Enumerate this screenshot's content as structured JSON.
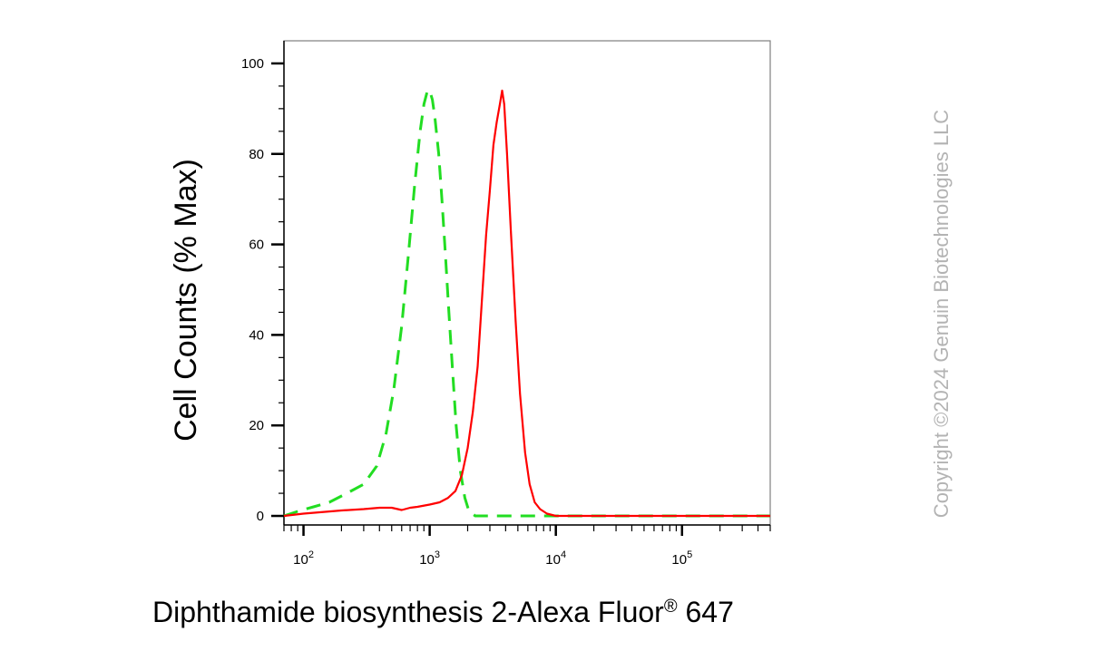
{
  "chart_data": {
    "type": "line",
    "title": "",
    "xlabel": "Diphthamide biosynthesis 2-Alexa Fluor",
    "xlabel_superscript": "®",
    "xlabel_suffix": " 647",
    "ylabel": "Cell Counts (% Max)",
    "xscale": "log",
    "xlim": [
      70,
      500000
    ],
    "ylim": [
      -2,
      105
    ],
    "y_ticks": [
      0,
      20,
      40,
      60,
      80,
      100
    ],
    "x_ticks": [
      {
        "value": 100,
        "base": "10",
        "exp": "2"
      },
      {
        "value": 1000,
        "base": "10",
        "exp": "3"
      },
      {
        "value": 10000,
        "base": "10",
        "exp": "4"
      },
      {
        "value": 100000,
        "base": "10",
        "exp": "5"
      }
    ],
    "grid": false,
    "legend": "none",
    "series": [
      {
        "color": "#22dd22",
        "style": "dashed",
        "x": [
          70,
          90,
          120,
          160,
          220,
          300,
          380,
          450,
          520,
          600,
          680,
          760,
          840,
          900,
          960,
          1000,
          1050,
          1100,
          1180,
          1250,
          1330,
          1420,
          1520,
          1620,
          1750,
          1900,
          2050,
          2300,
          3000,
          5000,
          10000,
          30000,
          100000,
          500000
        ],
        "y": [
          0,
          1,
          2,
          3,
          5,
          7,
          11,
          18,
          28,
          42,
          58,
          73,
          85,
          91,
          94,
          94,
          92,
          88,
          80,
          70,
          58,
          45,
          32,
          20,
          10,
          4,
          1,
          0,
          0,
          0,
          0,
          0,
          0,
          0
        ]
      },
      {
        "color": "#ff0000",
        "style": "solid",
        "x": [
          70,
          100,
          200,
          300,
          400,
          500,
          600,
          700,
          800,
          1000,
          1200,
          1400,
          1600,
          1800,
          2000,
          2200,
          2400,
          2600,
          2800,
          3000,
          3200,
          3400,
          3600,
          3750,
          3900,
          4100,
          4400,
          4800,
          5200,
          5700,
          6200,
          6800,
          7500,
          8500,
          10000,
          20000,
          100000,
          500000
        ],
        "y": [
          0,
          0.5,
          1.2,
          1.5,
          1.8,
          1.8,
          1.3,
          1.8,
          2,
          2.5,
          3,
          4,
          5.5,
          9,
          15,
          23,
          33,
          48,
          62,
          72,
          82,
          87,
          91,
          94,
          91,
          80,
          63,
          43,
          27,
          14,
          7,
          3,
          1.5,
          0.5,
          0,
          0,
          0,
          0
        ]
      }
    ]
  },
  "copyright": "Copyright ©2024 Genuin Biotechnologies LLC"
}
